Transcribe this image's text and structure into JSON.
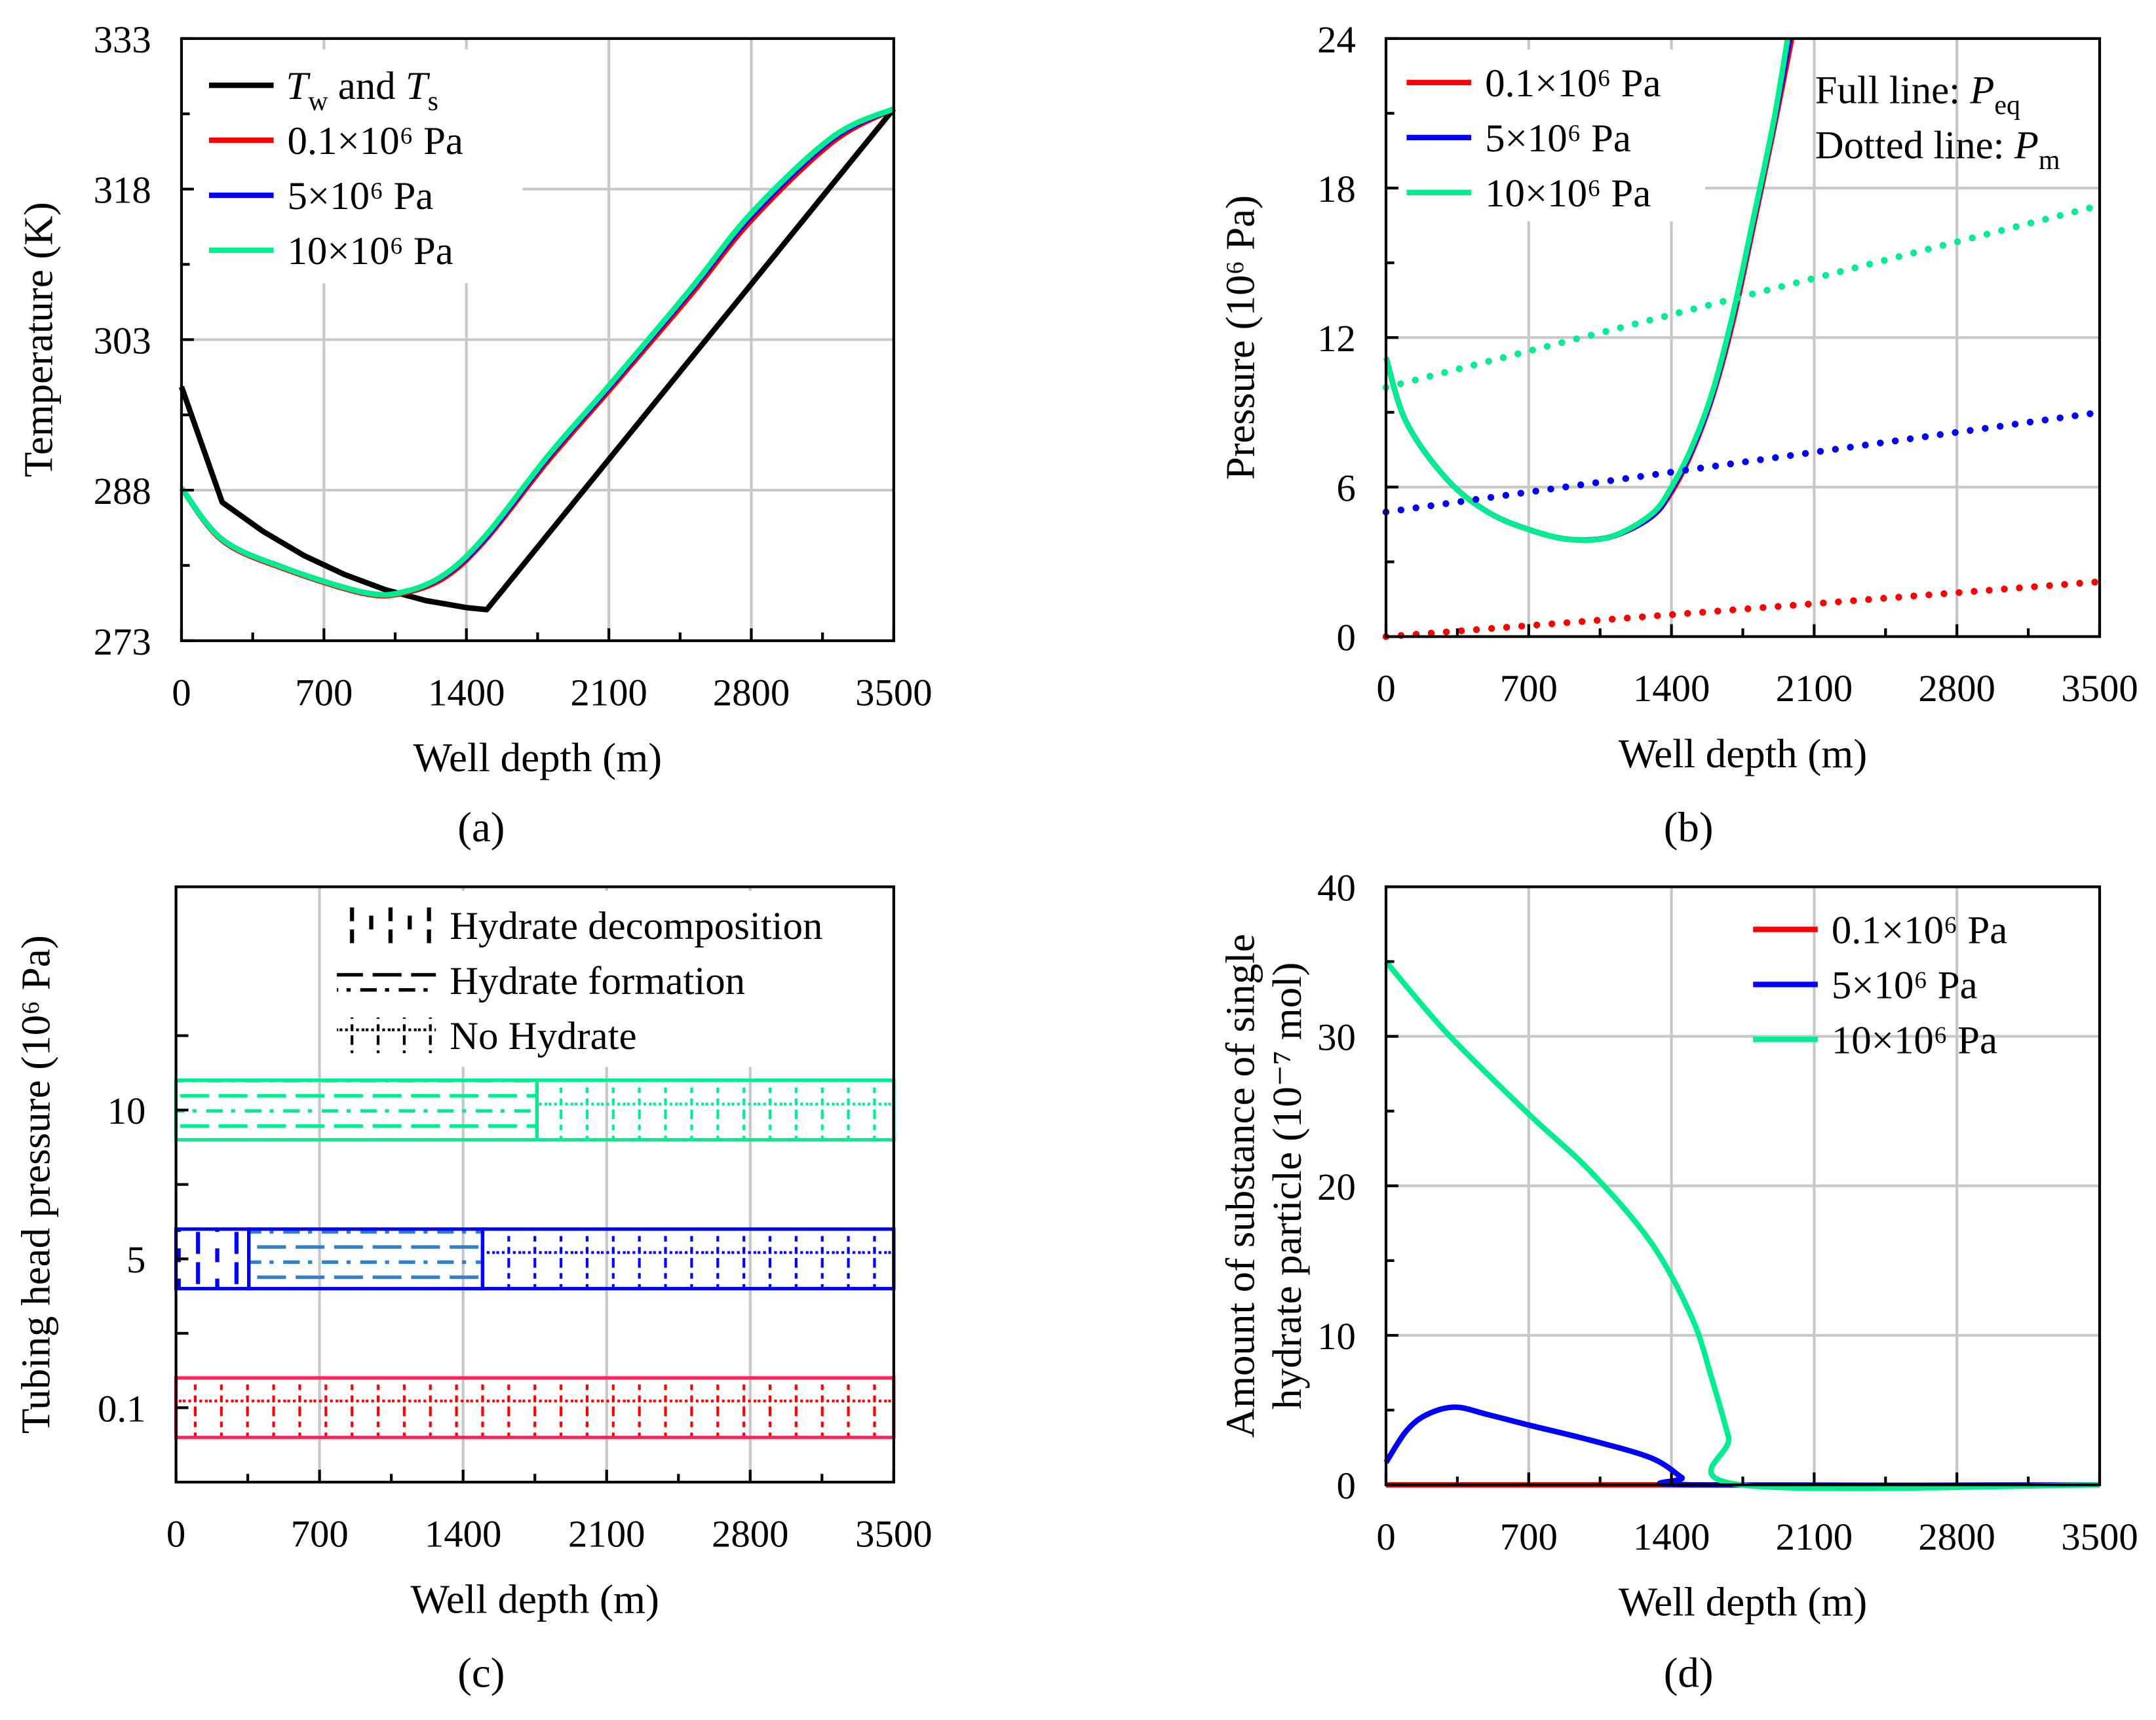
{
  "colors": {
    "red": "#ff0000",
    "blue": "#0000ff",
    "green": "#00ee90",
    "black": "#000000",
    "grid": "#c8c8c8",
    "blue_dash": "#2f80c8",
    "red_border": "#ff2060"
  },
  "chart_data": [
    {
      "id": "a",
      "panel_label": "(a)",
      "type": "line",
      "xlabel": "Well depth (m)",
      "ylabel": "Temperature (K)",
      "xlim": [
        0,
        3500
      ],
      "ylim": [
        273,
        333
      ],
      "xticks": [
        0,
        700,
        1400,
        2100,
        2800,
        3500
      ],
      "yticks": [
        273,
        288,
        303,
        318,
        333
      ],
      "grid": true,
      "legend_position": "top-left",
      "series": [
        {
          "name": "Tw and Ts",
          "label_parts": [
            {
              "t": "T",
              "i": true
            },
            {
              "t": "w",
              "sub": true
            },
            {
              "t": " and "
            },
            {
              "t": "T",
              "i": true
            },
            {
              "t": "s",
              "sub": true
            }
          ],
          "color": "black",
          "style": "solid",
          "smooth": false,
          "x": [
            0,
            200,
            400,
            600,
            800,
            1000,
            1200,
            1400,
            1500,
            3500
          ],
          "y": [
            298.3,
            286.8,
            283.9,
            281.5,
            279.6,
            278.1,
            277.0,
            276.3,
            276.1,
            326.0
          ]
        },
        {
          "name": "0.1×10⁶ Pa",
          "color": "red",
          "style": "solid",
          "smooth": true,
          "x": [
            0,
            200,
            500,
            900,
            1100,
            1300,
            1500,
            1800,
            2100,
            2500,
            2800,
            3200,
            3500
          ],
          "y": [
            288.2,
            283.0,
            280.2,
            277.7,
            277.8,
            279.4,
            283.2,
            290.9,
            297.9,
            307.4,
            314.9,
            322.7,
            326.0
          ]
        },
        {
          "name": "5×10⁶ Pa",
          "color": "blue",
          "style": "solid",
          "smooth": true,
          "x": [
            0,
            200,
            500,
            900,
            1100,
            1300,
            1500,
            1800,
            2100,
            2500,
            2800,
            3200,
            3500
          ],
          "y": [
            288.2,
            283.1,
            280.3,
            277.8,
            277.9,
            279.6,
            283.4,
            291.2,
            298.2,
            307.8,
            315.3,
            323.0,
            326.0
          ]
        },
        {
          "name": "10×10⁶ Pa",
          "color": "green",
          "style": "solid",
          "smooth": true,
          "x": [
            0,
            200,
            500,
            900,
            1100,
            1300,
            1500,
            1800,
            2100,
            2500,
            2800,
            3200,
            3500
          ],
          "y": [
            288.2,
            283.1,
            280.3,
            277.8,
            277.9,
            279.7,
            283.6,
            291.4,
            298.4,
            308.0,
            315.6,
            323.2,
            326.0
          ]
        }
      ]
    },
    {
      "id": "b",
      "panel_label": "(b)",
      "type": "line",
      "xlabel": "Well depth (m)",
      "ylabel": "Pressure (10⁶ Pa)",
      "xlim": [
        0,
        3500
      ],
      "ylim": [
        0,
        24
      ],
      "xticks": [
        0,
        700,
        1400,
        2100,
        2800,
        3500
      ],
      "yticks": [
        0,
        6,
        12,
        18,
        24
      ],
      "grid": true,
      "legend_position": "top-left",
      "annotations": [
        {
          "parts": [
            {
              "t": "Full line: "
            },
            {
              "t": "P",
              "i": true
            },
            {
              "t": "eq",
              "sub": true
            }
          ]
        },
        {
          "parts": [
            {
              "t": "Dotted line: "
            },
            {
              "t": "P",
              "i": true
            },
            {
              "t": "m",
              "sub": true
            }
          ]
        }
      ],
      "series": [
        {
          "name": "0.1×10⁶ Pa",
          "color": "red",
          "style": "solid",
          "smooth": true,
          "legend": true,
          "x": [
            0,
            100,
            300,
            500,
            700,
            900,
            1100,
            1300,
            1400,
            1500,
            1600,
            1700,
            1800,
            1900,
            1990
          ],
          "y": [
            11.2,
            8.6,
            6.3,
            5.0,
            4.3,
            3.9,
            4.0,
            4.8,
            5.8,
            7.4,
            9.6,
            12.6,
            16.4,
            20.3,
            24
          ]
        },
        {
          "name": "5×10⁶ Pa",
          "color": "blue",
          "style": "solid",
          "smooth": true,
          "legend": true,
          "x": [
            0,
            100,
            300,
            500,
            700,
            900,
            1100,
            1300,
            1400,
            1500,
            1600,
            1700,
            1800,
            1900,
            1980
          ],
          "y": [
            11.2,
            8.6,
            6.3,
            5.0,
            4.3,
            3.9,
            4.0,
            4.8,
            5.9,
            7.5,
            9.7,
            12.8,
            16.6,
            20.5,
            24
          ]
        },
        {
          "name": "10×10⁶ Pa",
          "color": "green",
          "style": "solid",
          "smooth": true,
          "legend": true,
          "x": [
            0,
            100,
            300,
            500,
            700,
            900,
            1100,
            1300,
            1400,
            1500,
            1600,
            1700,
            1800,
            1900,
            1970
          ],
          "y": [
            11.2,
            8.6,
            6.3,
            5.0,
            4.3,
            3.9,
            4.0,
            4.9,
            6.0,
            7.6,
            9.8,
            12.9,
            16.7,
            20.6,
            24
          ]
        },
        {
          "name": "0.1×10⁶ Pa Pm",
          "color": "red",
          "style": "dotted",
          "smooth": false,
          "legend": false,
          "x": [
            0,
            3500
          ],
          "y": [
            0.0,
            2.2
          ]
        },
        {
          "name": "5×10⁶ Pa Pm",
          "color": "blue",
          "style": "dotted",
          "smooth": false,
          "legend": false,
          "x": [
            0,
            3500
          ],
          "y": [
            5.0,
            9.0
          ]
        },
        {
          "name": "10×10⁶ Pa Pm",
          "color": "green",
          "style": "dotted",
          "smooth": false,
          "legend": false,
          "x": [
            0,
            3500
          ],
          "y": [
            10.0,
            17.3
          ]
        }
      ]
    },
    {
      "id": "c",
      "panel_label": "(c)",
      "type": "bar",
      "xlabel": "Well depth (m)",
      "ylabel": "Tubing head pressure (10⁶ Pa)",
      "xlim": [
        0,
        3500
      ],
      "ylim": [
        0,
        8
      ],
      "xticks": [
        0,
        700,
        1400,
        2100,
        2800,
        3500
      ],
      "yticks": [
        {
          "value": 1,
          "label": "0.1"
        },
        {
          "value": 3,
          "label": "5"
        },
        {
          "value": 5,
          "label": "10"
        }
      ],
      "minor_yticks": [
        2,
        4,
        6
      ],
      "grid": true,
      "legend_position": "top-right",
      "legend": [
        {
          "name": "Hydrate decomposition",
          "pattern": "decomposition"
        },
        {
          "name": "Hydrate formation",
          "pattern": "formation"
        },
        {
          "name": "No Hydrate",
          "pattern": "none"
        }
      ],
      "bars": [
        {
          "pressure": "0.1",
          "position": 1,
          "color": "red",
          "segments": [
            {
              "from": 0,
              "to": 3500,
              "state": "none"
            }
          ]
        },
        {
          "pressure": "5",
          "position": 3,
          "color": "blue",
          "segments": [
            {
              "from": 0,
              "to": 355,
              "state": "decomposition"
            },
            {
              "from": 355,
              "to": 1495,
              "state": "formation"
            },
            {
              "from": 1495,
              "to": 3500,
              "state": "none"
            }
          ]
        },
        {
          "pressure": "10",
          "position": 5,
          "color": "green",
          "segments": [
            {
              "from": 0,
              "to": 1760,
              "state": "formation"
            },
            {
              "from": 1760,
              "to": 3500,
              "state": "none"
            }
          ]
        }
      ]
    },
    {
      "id": "d",
      "panel_label": "(d)",
      "type": "line",
      "xlabel": "Well depth (m)",
      "ylabel": "Amount of substance of single",
      "ylabel2": "hydrate particle (10⁻⁷ mol)",
      "xlim": [
        0,
        3500
      ],
      "ylim": [
        0,
        40
      ],
      "xticks": [
        0,
        700,
        1400,
        2100,
        2800,
        3500
      ],
      "yticks": [
        0,
        10,
        20,
        30,
        40
      ],
      "grid": true,
      "legend_position": "top-right",
      "series": [
        {
          "name": "0.1×10⁶ Pa",
          "color": "red",
          "style": "solid",
          "smooth": false,
          "x": [
            0,
            1500
          ],
          "y": [
            0,
            0
          ]
        },
        {
          "name": "5×10⁶ Pa",
          "color": "blue",
          "style": "solid",
          "smooth": true,
          "x": [
            0,
            100,
            200,
            340,
            500,
            700,
            1000,
            1300,
            1450,
            1500,
            3500
          ],
          "y": [
            1.5,
            3.6,
            4.7,
            5.2,
            4.7,
            4.0,
            3.0,
            1.8,
            0.5,
            0,
            0
          ]
        },
        {
          "name": "10×10⁶ Pa",
          "color": "green",
          "style": "solid",
          "smooth": true,
          "x": [
            0,
            300,
            700,
            1000,
            1300,
            1500,
            1600,
            1680,
            1740,
            3500
          ],
          "y": [
            35,
            30.2,
            24.8,
            21.0,
            16.2,
            11.2,
            7.0,
            3.2,
            0,
            0
          ]
        }
      ]
    }
  ]
}
